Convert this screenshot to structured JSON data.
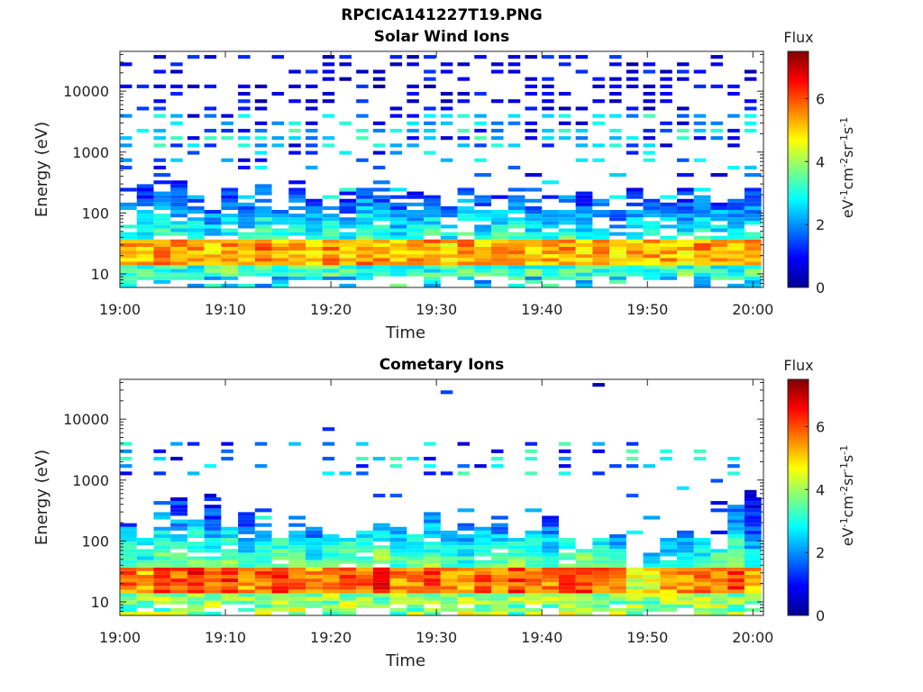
{
  "page_title": "RPCICA141227T19.PNG",
  "chart_data": [
    {
      "type": "heatmap",
      "title": "Solar Wind Ions",
      "xlabel": "Time",
      "ylabel": "Energy (eV)",
      "yscale": "log",
      "ylim": [
        6,
        45000
      ],
      "xlim": [
        "19:00",
        "20:01"
      ],
      "x_ticks": [
        "19:00",
        "19:10",
        "19:20",
        "19:30",
        "19:40",
        "19:50",
        "20:00"
      ],
      "y_ticks": [
        10,
        100,
        1000,
        10000
      ],
      "y_tick_labels": [
        "10",
        "100",
        "1000",
        "10000"
      ],
      "colorbar": {
        "title": "Flux",
        "label": "eV-1cm-2sr-1s-1",
        "min": 0,
        "max": 7.5,
        "ticks": [
          0,
          2,
          4,
          6
        ],
        "colormap": "jet"
      },
      "x_bins_minutes": [
        0,
        1.6,
        3.2,
        4.8,
        6.4,
        8,
        9.6,
        11.2,
        12.8,
        14.4,
        16,
        17.6,
        19.2,
        20.8,
        22.4,
        24,
        25.6,
        27.2,
        28.8,
        30.4,
        32,
        33.6,
        35.2,
        36.8,
        38.4,
        40,
        41.6,
        43.2,
        44.8,
        46.4,
        48,
        49.6,
        51.2,
        52.8,
        54.4,
        56,
        57.6,
        59.2
      ],
      "profile": {
        "low_band_flux": [
          6.0,
          5.8,
          6.2,
          6.0,
          6.1,
          5.6,
          6.0,
          5.7,
          6.3,
          5.9,
          6.0,
          5.8,
          6.1,
          5.5,
          6.2,
          6.0,
          5.7,
          5.9,
          6.1,
          5.6,
          6.2,
          5.8,
          6.0,
          6.3,
          5.6,
          5.9,
          6.1,
          5.7,
          6.0,
          5.5,
          5.8,
          5.9,
          6.0,
          5.6,
          6.1,
          5.8,
          5.7,
          5.9
        ],
        "mid_band_top_eV": [
          150,
          300,
          220,
          400,
          180,
          120,
          260,
          180,
          320,
          110,
          250,
          170,
          130,
          210,
          280,
          180,
          150,
          260,
          200,
          140,
          240,
          190,
          110,
          260,
          160,
          120,
          200,
          240,
          170,
          110,
          260,
          180,
          140,
          300,
          200,
          130,
          180,
          260
        ],
        "high_band_density": 0.45
      }
    },
    {
      "type": "heatmap",
      "title": "Cometary Ions",
      "xlabel": "Time",
      "ylabel": "Energy (eV)",
      "yscale": "log",
      "ylim": [
        6,
        45000
      ],
      "xlim": [
        "19:00",
        "20:01"
      ],
      "x_ticks": [
        "19:00",
        "19:10",
        "19:20",
        "19:30",
        "19:40",
        "19:50",
        "20:00"
      ],
      "y_ticks": [
        10,
        100,
        1000,
        10000
      ],
      "y_tick_labels": [
        "10",
        "100",
        "1000",
        "10000"
      ],
      "colorbar": {
        "title": "Flux",
        "label": "eV-1cm-2sr-1s-1",
        "min": 0,
        "max": 7.5,
        "ticks": [
          0,
          2,
          4,
          6
        ],
        "colormap": "jet"
      },
      "x_bins_minutes": [
        0,
        1.6,
        3.2,
        4.8,
        6.4,
        8,
        9.6,
        11.2,
        12.8,
        14.4,
        16,
        17.6,
        19.2,
        20.8,
        22.4,
        24,
        25.6,
        27.2,
        28.8,
        30.4,
        32,
        33.6,
        35.2,
        36.8,
        38.4,
        40,
        41.6,
        43.2,
        44.8,
        46.4,
        48,
        49.6,
        51.2,
        52.8,
        54.4,
        56,
        57.6,
        59.2
      ],
      "profile": {
        "low_band_flux": [
          6.3,
          6.0,
          6.8,
          6.5,
          6.9,
          6.2,
          6.7,
          6.1,
          6.4,
          6.8,
          6.6,
          6.0,
          6.3,
          6.7,
          6.5,
          6.9,
          6.2,
          6.4,
          6.6,
          6.1,
          6.0,
          6.4,
          6.3,
          6.7,
          6.5,
          6.2,
          6.6,
          6.8,
          6.3,
          6.1,
          5.0,
          5.4,
          5.8,
          6.0,
          6.2,
          6.4,
          6.8,
          5.9
        ],
        "mid_band_top_eV": [
          170,
          120,
          300,
          500,
          230,
          600,
          180,
          350,
          200,
          120,
          250,
          160,
          130,
          110,
          180,
          190,
          170,
          130,
          280,
          150,
          170,
          160,
          200,
          120,
          140,
          260,
          110,
          100,
          120,
          130,
          40,
          60,
          110,
          150,
          120,
          80,
          500,
          700
        ],
        "high_band_density": 0.35
      }
    }
  ]
}
